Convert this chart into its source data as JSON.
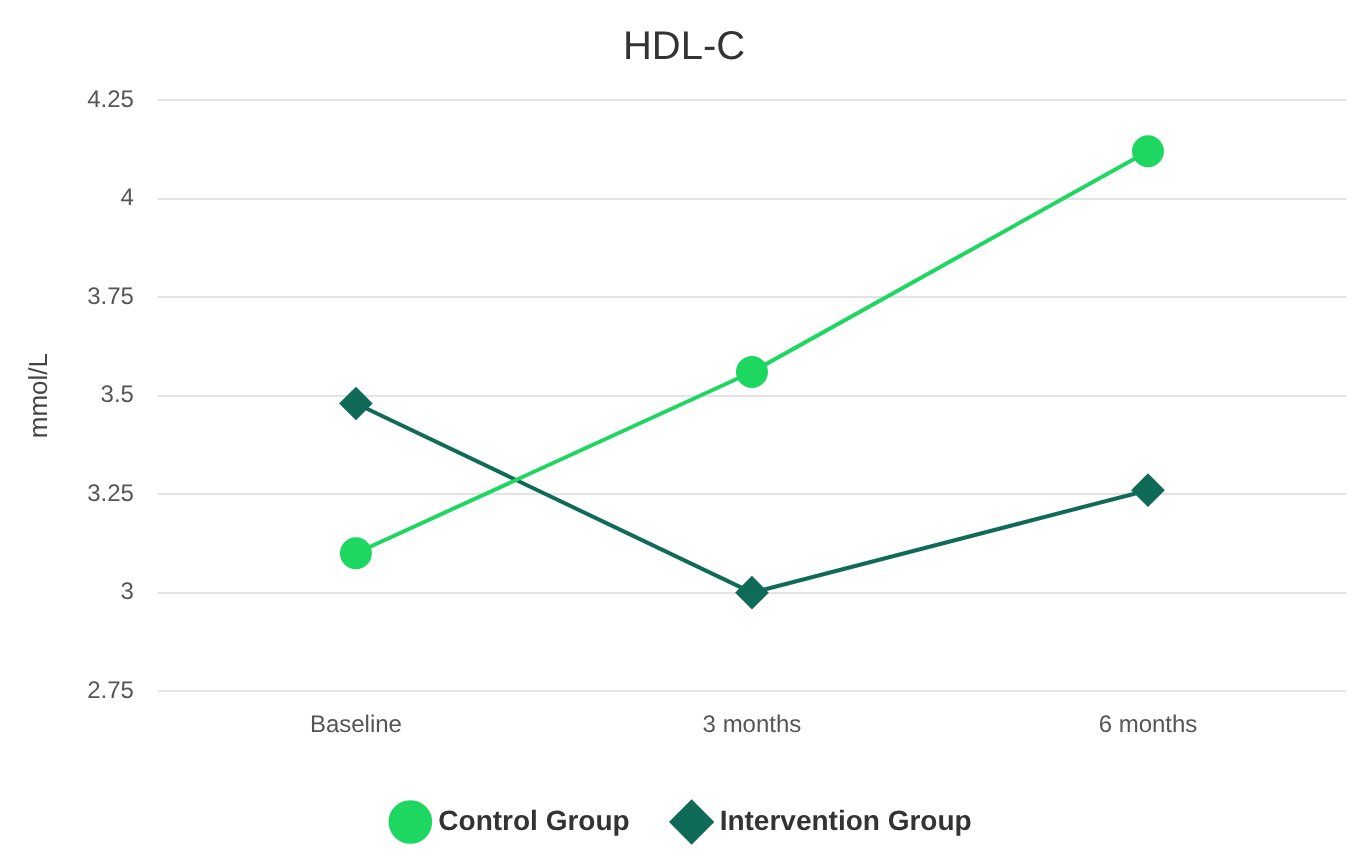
{
  "chart_data": {
    "type": "line",
    "title": "HDL-C",
    "ylabel": "mmol/L",
    "categories": [
      "Baseline",
      "3 months",
      "6 months"
    ],
    "series": [
      {
        "name": "Control Group",
        "color": "#1ed760",
        "marker": "circle",
        "values": [
          3.1,
          3.56,
          4.12
        ]
      },
      {
        "name": "Intervention Group",
        "color": "#0f6b57",
        "marker": "diamond",
        "values": [
          3.48,
          3.0,
          3.26
        ]
      }
    ],
    "ylim": [
      2.75,
      4.25
    ],
    "yticks": [
      2.75,
      3,
      3.25,
      3.5,
      3.75,
      4,
      4.25
    ],
    "grid": "y",
    "legend": "bottom"
  }
}
